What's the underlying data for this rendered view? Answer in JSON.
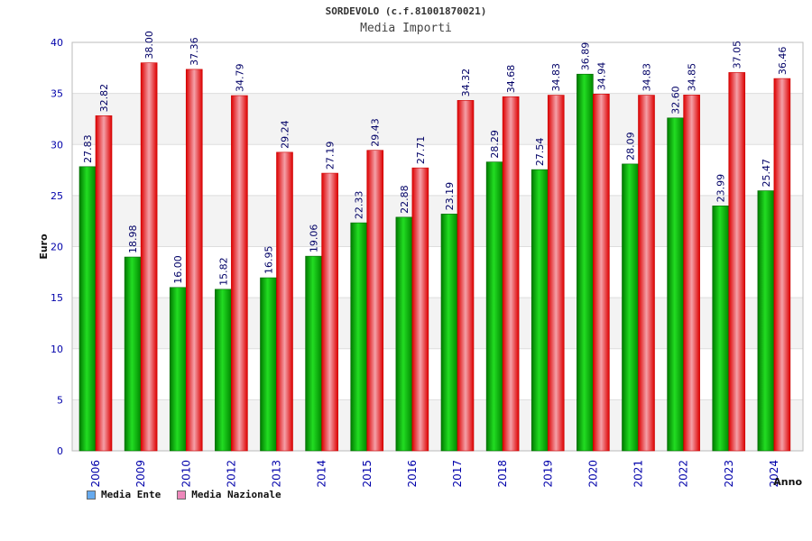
{
  "header": {
    "title": "SORDEVOLO (c.f.81001870021)",
    "subtitle": "Media Importi"
  },
  "legend": {
    "items": [
      {
        "label": "Media Ente",
        "color": "#66aaee"
      },
      {
        "label": "Media Nazionale",
        "color": "#ee88bb"
      }
    ]
  },
  "chart_data": {
    "type": "bar",
    "title": "SORDEVOLO (c.f.81001870021)",
    "subtitle": "Media Importi",
    "xlabel": "Anno",
    "ylabel": "Euro",
    "ylim": [
      0,
      40
    ],
    "yticks": [
      0,
      5,
      10,
      15,
      20,
      25,
      30,
      35,
      40
    ],
    "grid": true,
    "legend_position": "bottom-left",
    "categories": [
      "2006",
      "2009",
      "2010",
      "2012",
      "2013",
      "2014",
      "2015",
      "2016",
      "2017",
      "2018",
      "2019",
      "2020",
      "2021",
      "2022",
      "2023",
      "2024"
    ],
    "series": [
      {
        "name": "Media Ente",
        "color": "#00bb00",
        "values": [
          27.83,
          18.98,
          16.0,
          15.82,
          16.95,
          19.06,
          22.33,
          22.88,
          23.19,
          28.29,
          27.54,
          36.89,
          28.09,
          32.6,
          23.99,
          25.47
        ],
        "labels": [
          "27.83",
          "18.98",
          "16.00",
          "15.82",
          "16.95",
          "19.06",
          "22.33",
          "22.88",
          "23.19",
          "28.29",
          "27.54",
          "36.89",
          "28.09",
          "32.60",
          "23.99",
          "25.47"
        ]
      },
      {
        "name": "Media Nazionale",
        "color": "#ee1111",
        "values": [
          32.82,
          38.0,
          37.36,
          34.79,
          29.24,
          27.19,
          29.43,
          27.71,
          34.32,
          34.68,
          34.83,
          34.94,
          34.83,
          34.85,
          37.05,
          36.46
        ],
        "labels": [
          "32.82",
          "38.00",
          "37.36",
          "34.79",
          "29.24",
          "27.19",
          "29.43",
          "27.71",
          "34.32",
          "34.68",
          "34.83",
          "34.94",
          "34.83",
          "34.85",
          "37.05",
          "36.46"
        ]
      }
    ]
  }
}
